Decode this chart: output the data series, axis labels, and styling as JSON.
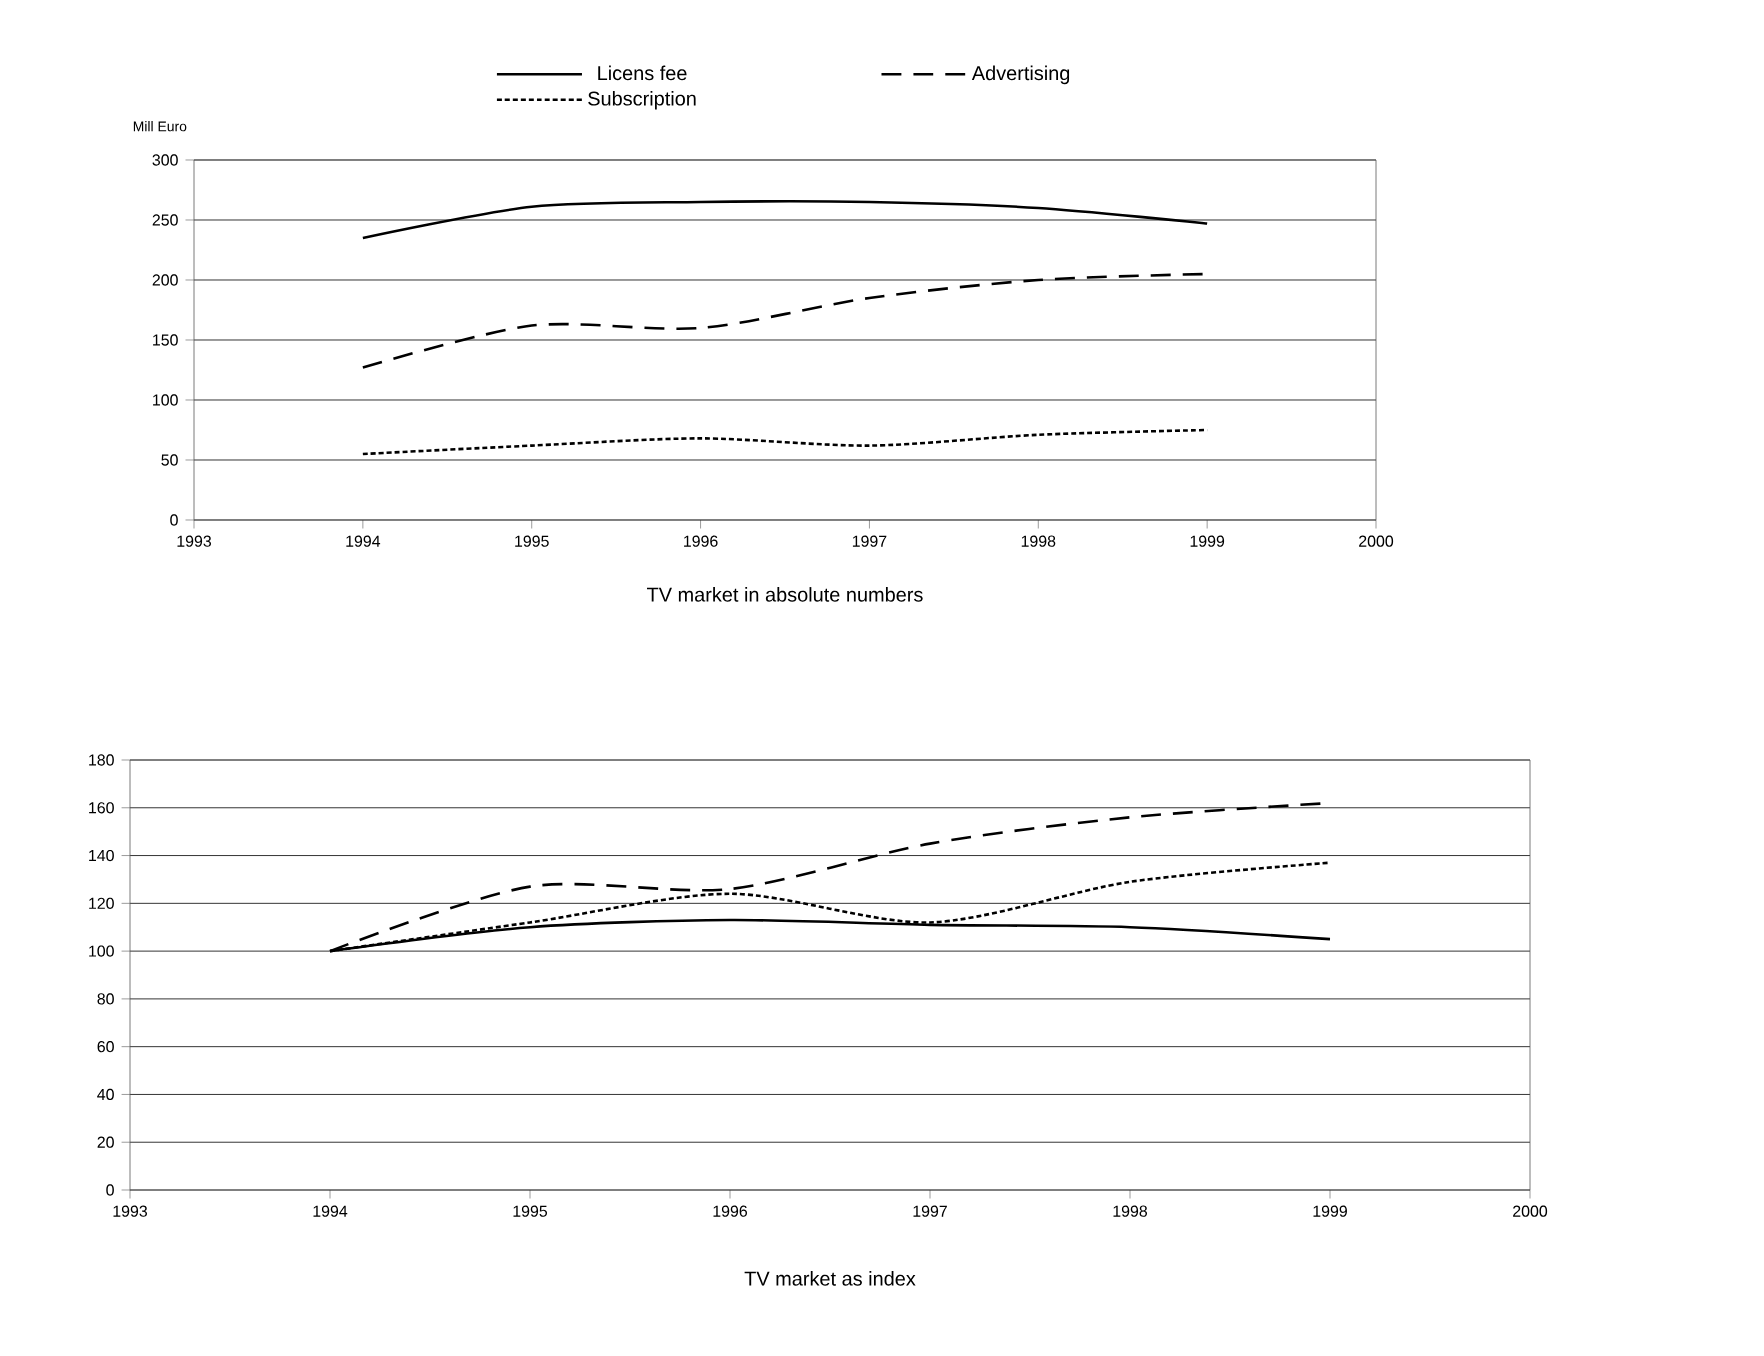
{
  "chart_data": [
    {
      "type": "line",
      "title": "TV market in absolute numbers",
      "ylabel": "Mill Euro",
      "x": [
        1994,
        1995,
        1996,
        1997,
        1998,
        1999
      ],
      "xlim": [
        1993,
        2000
      ],
      "xticks": [
        1993,
        1994,
        1995,
        1996,
        1997,
        1998,
        1999,
        2000
      ],
      "ylim": [
        0,
        300
      ],
      "yticks": [
        0,
        50,
        100,
        150,
        200,
        250,
        300
      ],
      "grid": "y",
      "legend": "top",
      "series": [
        {
          "name": "Licens fee",
          "color": "#000000",
          "line_style": "solid",
          "values": [
            235,
            261,
            265,
            265,
            260,
            247
          ]
        },
        {
          "name": "Advertising",
          "color": "#000000",
          "line_style": "dashed",
          "values": [
            127,
            162,
            160,
            185,
            200,
            205
          ]
        },
        {
          "name": "Subscription",
          "color": "#000000",
          "line_style": "dotted",
          "values": [
            55,
            62,
            68,
            62,
            71,
            75
          ]
        }
      ]
    },
    {
      "type": "line",
      "title": "TV market as index",
      "x": [
        1994,
        1995,
        1996,
        1997,
        1998,
        1999
      ],
      "xlim": [
        1993,
        2000
      ],
      "xticks": [
        1993,
        1994,
        1995,
        1996,
        1997,
        1998,
        1999,
        2000
      ],
      "ylim": [
        0,
        180
      ],
      "yticks": [
        0,
        20,
        40,
        60,
        80,
        100,
        120,
        140,
        160,
        180
      ],
      "grid": "y",
      "series": [
        {
          "color": "#000000",
          "line_style": "solid",
          "values": [
            100,
            110,
            113,
            111,
            110,
            105
          ]
        },
        {
          "color": "#000000",
          "line_style": "dashed",
          "values": [
            100,
            127,
            126,
            145,
            156,
            162
          ]
        },
        {
          "color": "#000000",
          "line_style": "dotted",
          "values": [
            100,
            112,
            124,
            112,
            129,
            137
          ]
        }
      ]
    }
  ]
}
